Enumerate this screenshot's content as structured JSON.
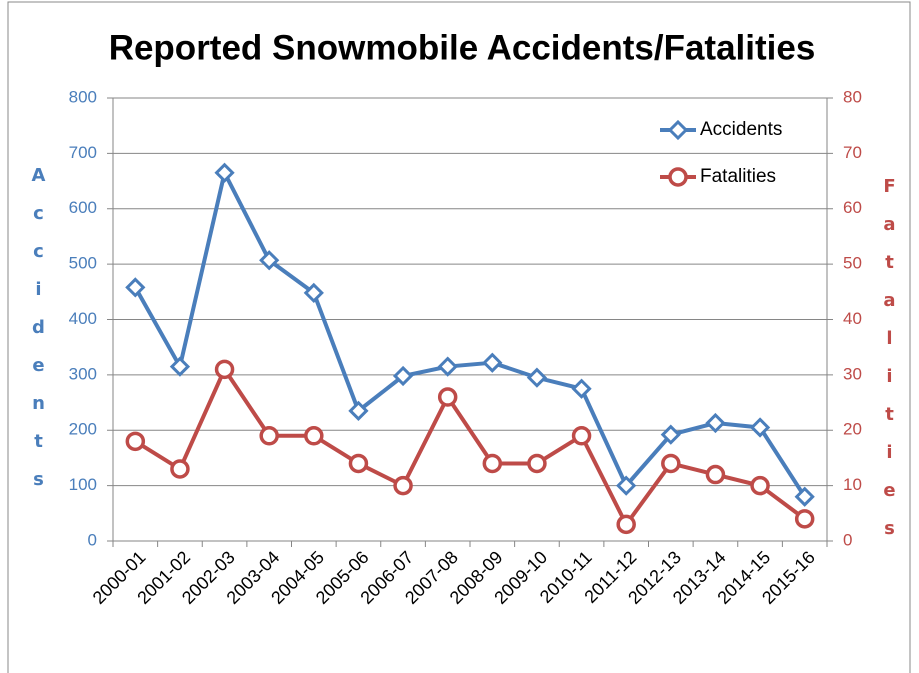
{
  "chart_data": {
    "type": "line",
    "title": "Reported Snowmobile Accidents/Fatalities",
    "y_label": "Accidents",
    "y2_label": "Fatalities",
    "categories": [
      "2000-01",
      "2001-02",
      "2002-03",
      "2003-04",
      "2004-05",
      "2005-06",
      "2006-07",
      "2007-08",
      "2008-09",
      "2009-10",
      "2010-11",
      "2011-12",
      "2012-13",
      "2013-14",
      "2014-15",
      "2015-16"
    ],
    "series": [
      {
        "name": "Accidents",
        "color": "#4a7ebb",
        "marker": "diamond",
        "values": [
          458,
          315,
          665,
          507,
          448,
          235,
          298,
          315,
          322,
          295,
          275,
          100,
          192,
          213,
          205,
          80
        ]
      },
      {
        "name": "Fatalities",
        "color": "#be4b48",
        "marker": "circle",
        "axis": "y2",
        "values": [
          18,
          13,
          31,
          19,
          19,
          14,
          10,
          26,
          14,
          14,
          19,
          3,
          14,
          12,
          10,
          4
        ]
      }
    ],
    "ylim": [
      0,
      800
    ],
    "yticks": [
      0,
      100,
      200,
      300,
      400,
      500,
      600,
      700,
      800
    ],
    "y2lim": [
      0,
      80
    ],
    "y2ticks": [
      0,
      10,
      20,
      30,
      40,
      50,
      60,
      70,
      80
    ],
    "grid": true,
    "legend": "top-right"
  }
}
